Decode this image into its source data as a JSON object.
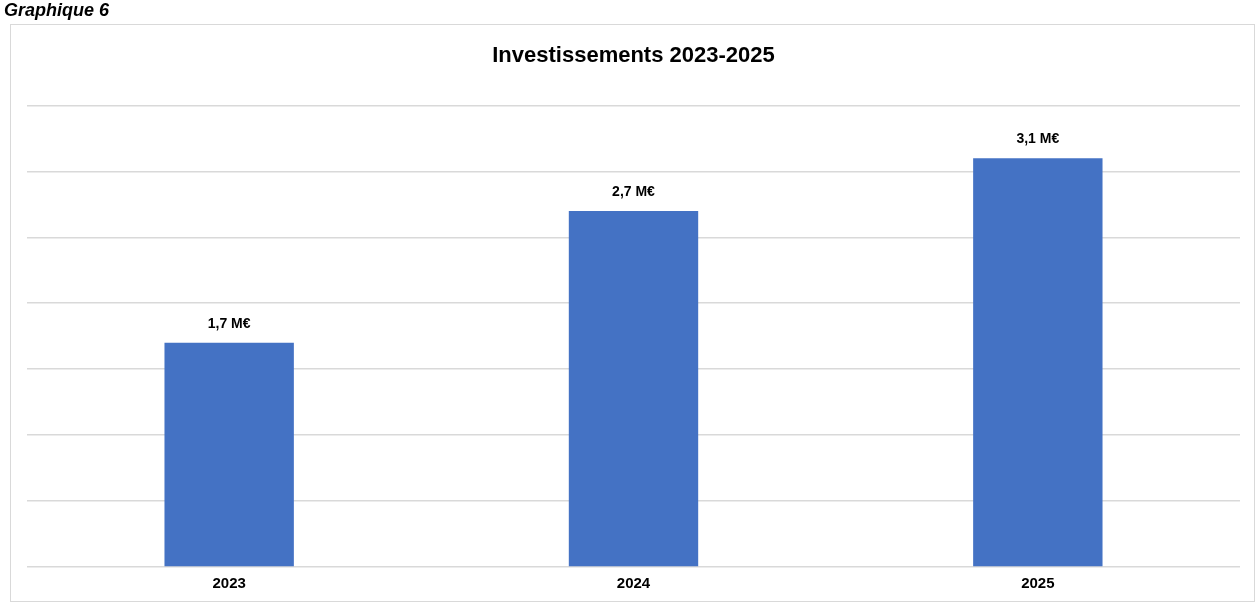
{
  "chart_data": {
    "type": "bar",
    "title": "Investissements 2023-2025",
    "annotations": [
      "Graphique 6"
    ],
    "categories": [
      "2023",
      "2024",
      "2025"
    ],
    "values": [
      1.7,
      2.7,
      3.1
    ],
    "value_labels": [
      "1,7 M€",
      "2,7 M€",
      "3,1 M€"
    ],
    "color": "#4472c4",
    "ylim": [
      0,
      3.5
    ],
    "yticks": [
      {
        "value": 0,
        "label": null
      },
      {
        "value": 0.5,
        "label": null
      },
      {
        "value": 1,
        "label": null
      },
      {
        "value": 1.5,
        "label": null
      },
      {
        "value": 2,
        "label": null
      },
      {
        "value": 2.5,
        "label": null
      },
      {
        "value": 3,
        "label": null
      },
      {
        "value": 3.5,
        "label": null
      }
    ],
    "tick_labels": "x",
    "grid": "y"
  }
}
